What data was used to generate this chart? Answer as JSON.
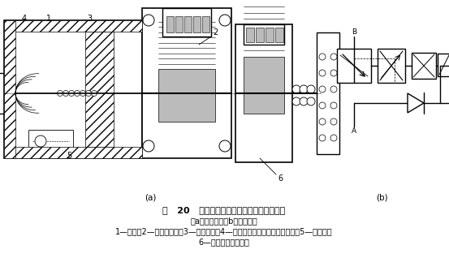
{
  "fig_width": 5.53,
  "fig_height": 3.18,
  "dpi": 100,
  "bg_color": "#ffffff",
  "title_line": "图   20   位移电反馈型直动式电液比例调速阀",
  "subtitle_line": "（a）结构图；（b）图形符号",
  "caption_line1": "1—阀体；2—比例电磁铁；3—节流阀心；4—作为压力补偿器的定差减压阀；5—单向阀；",
  "caption_line2": "6—电感式位移传感器",
  "label_a": "(a)",
  "label_b": "(b)"
}
